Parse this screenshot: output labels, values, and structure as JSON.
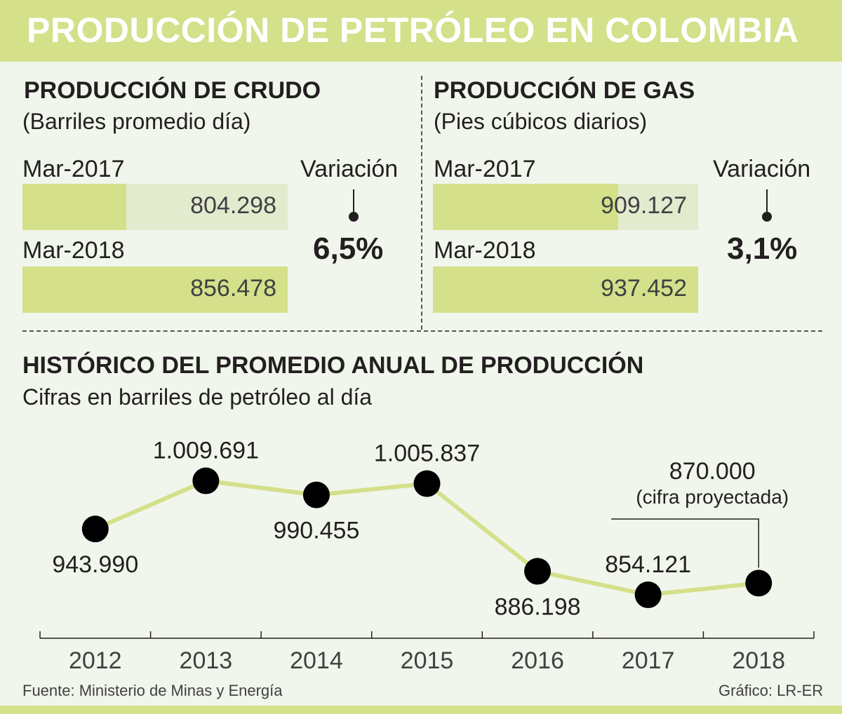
{
  "title": "PRODUCCIÓN DE PETRÓLEO EN COLOMBIA",
  "crudo": {
    "heading": "PRODUCCIÓN DE CRUDO",
    "subtitle": "(Barriles promedio día)",
    "bars": [
      {
        "label": "Mar-2017",
        "value": 804298,
        "display": "804.298"
      },
      {
        "label": "Mar-2018",
        "value": 856478,
        "display": "856.478"
      }
    ],
    "variation_label": "Variación",
    "variation": "6,5%"
  },
  "gas": {
    "heading": "PRODUCCIÓN DE GAS",
    "subtitle": "(Pies cúbicos diarios)",
    "bars": [
      {
        "label": "Mar-2017",
        "value": 909127,
        "display": "909.127"
      },
      {
        "label": "Mar-2018",
        "value": 937452,
        "display": "937.452"
      }
    ],
    "variation_label": "Variación",
    "variation": "3,1%"
  },
  "historico": {
    "heading": "HISTÓRICO DEL PROMEDIO ANUAL DE PRODUCCIÓN",
    "subtitle": "Cifras en barriles de petróleo al día",
    "projection_note": "(cifra proyectada)"
  },
  "chart_data": {
    "type": "line",
    "title": "HISTÓRICO DEL PROMEDIO ANUAL DE PRODUCCIÓN",
    "ylabel": "Barriles de petróleo al día",
    "categories": [
      "2012",
      "2013",
      "2014",
      "2015",
      "2016",
      "2017",
      "2018"
    ],
    "values": [
      943990,
      1009691,
      990455,
      1005837,
      886198,
      854121,
      870000
    ],
    "labels": [
      "943.990",
      "1.009.691",
      "990.455",
      "1.005.837",
      "886.198",
      "854.121",
      "870.000"
    ],
    "projected": [
      false,
      false,
      false,
      false,
      false,
      false,
      true
    ],
    "ylim": [
      840000,
      1020000
    ]
  },
  "footer": {
    "source": "Fuente: Ministerio de Minas y Energía",
    "credit": "Gráfico: LR-ER"
  },
  "colors": {
    "accent": "#d4e08a",
    "bar_track": "#e3ebcf",
    "background": "#f1f6ec",
    "text": "#231f20",
    "line": "#d4e08a",
    "dot": "#000000"
  }
}
